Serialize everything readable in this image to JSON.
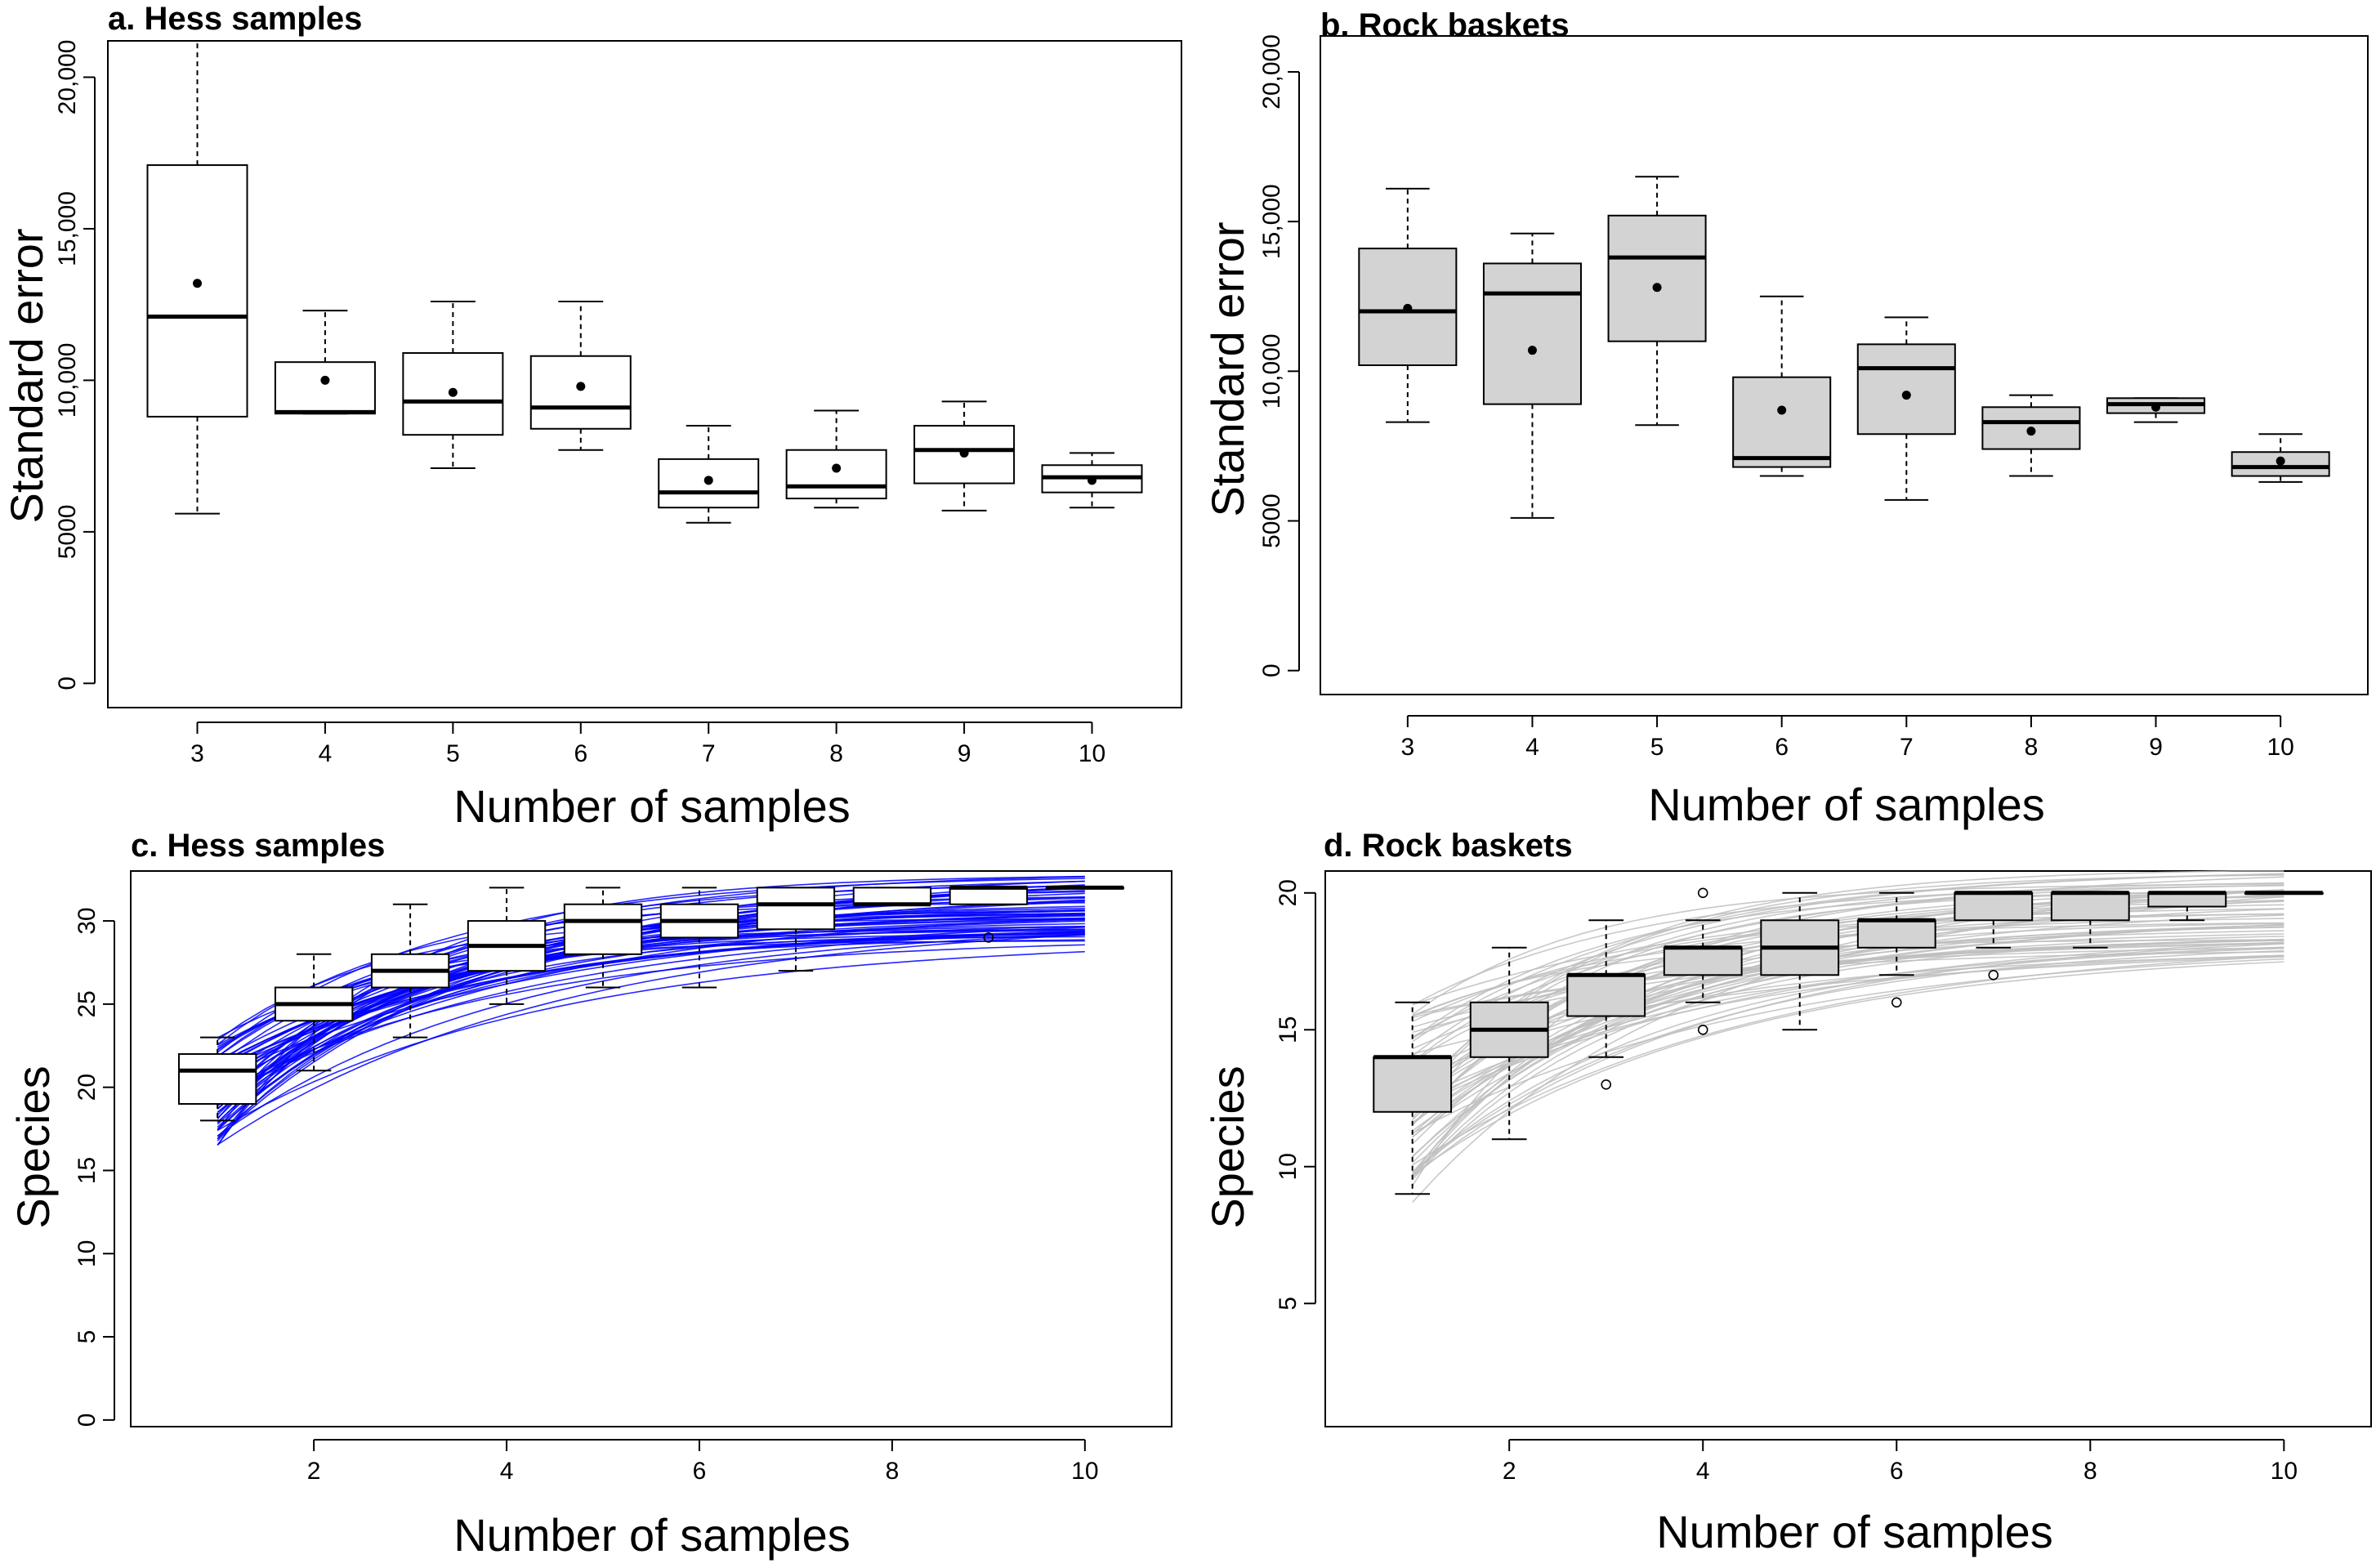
{
  "colors": {
    "white_box": "#ffffff",
    "gray_box": "#d3d3d3",
    "blue_curves": "#0000ff",
    "gray_curves": "#bebebe",
    "ink": "#000000"
  },
  "chart_data": [
    {
      "id": "a",
      "type": "boxplot",
      "title": "a. Hess samples",
      "xlabel": "Number of samples",
      "ylabel": "Standard error",
      "ylim": [
        -800,
        21200
      ],
      "yticks": [
        0,
        5000,
        10000,
        15000,
        20000
      ],
      "ytick_labels": [
        "0",
        "5000",
        "10,000",
        "15,000",
        "20,000"
      ],
      "box_fill": "#ffffff",
      "categories": [
        "3",
        "4",
        "5",
        "6",
        "7",
        "8",
        "9",
        "10"
      ],
      "boxes": [
        {
          "x": "3",
          "min": 5600,
          "q1": 8800,
          "median": 12100,
          "q3": 17100,
          "max": 21200,
          "mean": 13200
        },
        {
          "x": "4",
          "min": 8900,
          "q1": 8900,
          "median": 8950,
          "q3": 10600,
          "max": 12300,
          "mean": 10000
        },
        {
          "x": "5",
          "min": 7100,
          "q1": 8200,
          "median": 9300,
          "q3": 10900,
          "max": 12600,
          "mean": 9600
        },
        {
          "x": "6",
          "min": 7700,
          "q1": 8400,
          "median": 9100,
          "q3": 10800,
          "max": 12600,
          "mean": 9800
        },
        {
          "x": "7",
          "min": 5300,
          "q1": 5800,
          "median": 6300,
          "q3": 7400,
          "max": 8500,
          "mean": 6700
        },
        {
          "x": "8",
          "min": 5800,
          "q1": 6100,
          "median": 6500,
          "q3": 7700,
          "max": 9000,
          "mean": 7100
        },
        {
          "x": "9",
          "min": 5700,
          "q1": 6600,
          "median": 7700,
          "q3": 8500,
          "max": 9300,
          "mean": 7600
        },
        {
          "x": "10",
          "min": 5800,
          "q1": 6300,
          "median": 6800,
          "q3": 7200,
          "max": 7600,
          "mean": 6700
        }
      ]
    },
    {
      "id": "b",
      "type": "boxplot",
      "title": "b. Rock baskets",
      "xlabel": "Number of samples",
      "ylabel": "Standard error",
      "ylim": [
        -800,
        21200
      ],
      "yticks": [
        0,
        5000,
        10000,
        15000,
        20000
      ],
      "ytick_labels": [
        "0",
        "5000",
        "10,000",
        "15,000",
        "20,000"
      ],
      "box_fill": "#d3d3d3",
      "categories": [
        "3",
        "4",
        "5",
        "6",
        "7",
        "8",
        "9",
        "10"
      ],
      "boxes": [
        {
          "x": "3",
          "min": 8300,
          "q1": 10200,
          "median": 12000,
          "q3": 14100,
          "max": 16100,
          "mean": 12100
        },
        {
          "x": "4",
          "min": 5100,
          "q1": 8900,
          "median": 12600,
          "q3": 13600,
          "max": 14600,
          "mean": 10700
        },
        {
          "x": "5",
          "min": 8200,
          "q1": 11000,
          "median": 13800,
          "q3": 15200,
          "max": 16500,
          "mean": 12800
        },
        {
          "x": "6",
          "min": 6500,
          "q1": 6800,
          "median": 7100,
          "q3": 9800,
          "max": 12500,
          "mean": 8700
        },
        {
          "x": "7",
          "min": 5700,
          "q1": 7900,
          "median": 10100,
          "q3": 10900,
          "max": 11800,
          "mean": 9200
        },
        {
          "x": "8",
          "min": 6500,
          "q1": 7400,
          "median": 8300,
          "q3": 8800,
          "max": 9200,
          "mean": 8000
        },
        {
          "x": "9",
          "min": 8300,
          "q1": 8600,
          "median": 8900,
          "q3": 9100,
          "max": 9100,
          "mean": 8800
        },
        {
          "x": "10",
          "min": 6300,
          "q1": 6500,
          "median": 6800,
          "q3": 7300,
          "max": 7900,
          "mean": 7000
        }
      ]
    },
    {
      "id": "c",
      "type": "boxplot_with_curves",
      "title": "c. Hess samples",
      "xlabel": "Number of samples",
      "ylabel": "Species",
      "xlim": [
        0.1,
        10.9
      ],
      "ylim": [
        -0.4,
        33
      ],
      "xticks": [
        2,
        4,
        6,
        8,
        10
      ],
      "yticks": [
        0,
        5,
        10,
        15,
        20,
        25,
        30
      ],
      "box_fill": "#ffffff",
      "curve_color": "#0000ff",
      "curve_count": 60,
      "curve_family": {
        "asymptote_range": [
          28.8,
          33
        ],
        "start_range": [
          16.5,
          23
        ],
        "rate_range": [
          0.28,
          0.6
        ]
      },
      "boxes": [
        {
          "x": 1,
          "min": 18,
          "q1": 19,
          "median": 21,
          "q3": 22,
          "max": 23,
          "outliers": []
        },
        {
          "x": 2,
          "min": 21,
          "q1": 24,
          "median": 25,
          "q3": 26,
          "max": 28,
          "outliers": []
        },
        {
          "x": 3,
          "min": 23,
          "q1": 26,
          "median": 27,
          "q3": 28,
          "max": 31,
          "outliers": []
        },
        {
          "x": 4,
          "min": 25,
          "q1": 27,
          "median": 28.5,
          "q3": 30,
          "max": 32,
          "outliers": []
        },
        {
          "x": 5,
          "min": 26,
          "q1": 28,
          "median": 30,
          "q3": 31,
          "max": 32,
          "outliers": []
        },
        {
          "x": 6,
          "min": 26,
          "q1": 29,
          "median": 30,
          "q3": 31,
          "max": 32,
          "outliers": []
        },
        {
          "x": 7,
          "min": 27,
          "q1": 29.5,
          "median": 31,
          "q3": 32,
          "max": 32,
          "outliers": []
        },
        {
          "x": 8,
          "min": 31,
          "q1": 31,
          "median": 31,
          "q3": 32,
          "max": 32,
          "outliers": []
        },
        {
          "x": 9,
          "min": 31,
          "q1": 31,
          "median": 32,
          "q3": 32,
          "max": 32,
          "outliers": [
            29
          ]
        },
        {
          "x": 10,
          "min": 32,
          "q1": 32,
          "median": 32,
          "q3": 32,
          "max": 32,
          "outliers": []
        }
      ]
    },
    {
      "id": "d",
      "type": "boxplot_with_curves",
      "title": "d. Rock baskets",
      "xlabel": "Number of samples",
      "ylabel": "Species",
      "xlim": [
        0.1,
        10.9
      ],
      "ylim": [
        0.5,
        20.8
      ],
      "xticks": [
        2,
        4,
        6,
        8,
        10
      ],
      "yticks": [
        5,
        10,
        15,
        20
      ],
      "box_fill": "#d3d3d3",
      "curve_color": "#bebebe",
      "curve_count": 60,
      "curve_family": {
        "asymptote_range": [
          17.7,
          21
        ],
        "start_range": [
          8.7,
          16
        ],
        "rate_range": [
          0.22,
          0.55
        ]
      },
      "boxes": [
        {
          "x": 1,
          "min": 9,
          "q1": 12,
          "median": 14,
          "q3": 14,
          "max": 16,
          "outliers": []
        },
        {
          "x": 2,
          "min": 11,
          "q1": 14,
          "median": 15,
          "q3": 16,
          "max": 18,
          "outliers": []
        },
        {
          "x": 3,
          "min": 14,
          "q1": 15.5,
          "median": 17,
          "q3": 17,
          "max": 19,
          "outliers": [
            13
          ]
        },
        {
          "x": 4,
          "min": 16,
          "q1": 17,
          "median": 18,
          "q3": 18,
          "max": 19,
          "outliers": [
            15,
            20
          ]
        },
        {
          "x": 5,
          "min": 15,
          "q1": 17,
          "median": 18,
          "q3": 19,
          "max": 20,
          "outliers": []
        },
        {
          "x": 6,
          "min": 17,
          "q1": 18,
          "median": 19,
          "q3": 19,
          "max": 20,
          "outliers": [
            16
          ]
        },
        {
          "x": 7,
          "min": 18,
          "q1": 19,
          "median": 20,
          "q3": 20,
          "max": 20,
          "outliers": [
            17
          ]
        },
        {
          "x": 8,
          "min": 18,
          "q1": 19,
          "median": 20,
          "q3": 20,
          "max": 20,
          "outliers": []
        },
        {
          "x": 9,
          "min": 19,
          "q1": 19.5,
          "median": 20,
          "q3": 20,
          "max": 20,
          "outliers": []
        },
        {
          "x": 10,
          "min": 20,
          "q1": 20,
          "median": 20,
          "q3": 20,
          "max": 20,
          "outliers": []
        }
      ]
    }
  ]
}
